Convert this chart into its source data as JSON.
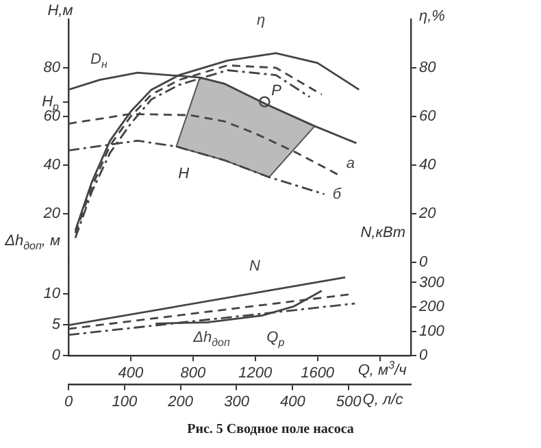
{
  "chart_data": [
    {
      "type": "line",
      "ylabel": "H,м",
      "y2label": "η,%",
      "xlim": [
        0,
        2200
      ],
      "ylim": [
        0,
        100
      ],
      "yticks": [
        20,
        40,
        {
          "value": 66,
          "label": "H$_{р}$"
        },
        60,
        80
      ],
      "y2lim": [
        0,
        100
      ],
      "y2ticks": [
        0,
        20,
        40,
        60,
        80
      ],
      "tick_labels": "y",
      "grid": false,
      "legend": false,
      "marker": "none",
      "series": [
        {
          "name": "D$_{н}$",
          "color": "#444444",
          "line_style": "solid",
          "x": [
            0,
            200,
            444,
            844,
            1000,
            1271,
            1582,
            1850
          ],
          "values": [
            71,
            75,
            78,
            76,
            73.5,
            65,
            56,
            49
          ]
        },
        {
          "name": "a",
          "color": "#444444",
          "line_style": "dashed",
          "x": [
            0,
            400,
            782,
            1000,
            1200,
            1467,
            1733
          ],
          "values": [
            57,
            61,
            60.5,
            58,
            53,
            45,
            36
          ]
        },
        {
          "name": "б",
          "color": "#444444",
          "line_style": "dashdot",
          "x": [
            0,
            444,
            693,
            1000,
            1289,
            1644
          ],
          "values": [
            46,
            50,
            47.6,
            42,
            35,
            28
          ]
        },
        {
          "name": "η",
          "color": "#444444",
          "line_style": "solid",
          "axis": "y2",
          "x": [
            44,
            150,
            267,
            400,
            533,
            711,
            1022,
            1333,
            1600,
            1867
          ],
          "values": [
            13,
            33,
            50,
            62,
            71,
            77,
            83,
            86,
            82,
            71
          ]
        },
        {
          "color": "#444444",
          "line_style": "dashed",
          "axis": "y2",
          "x": [
            44,
            150,
            267,
            400,
            533,
            711,
            1022,
            1333,
            1627
          ],
          "values": [
            12,
            31,
            48,
            60,
            69,
            75,
            81,
            80,
            69
          ]
        },
        {
          "color": "#444444",
          "line_style": "dashdot",
          "axis": "y2",
          "x": [
            44,
            150,
            267,
            400,
            533,
            711,
            1022,
            1333,
            1550
          ],
          "values": [
            10,
            29,
            45,
            57,
            67,
            73,
            79,
            77,
            68
          ]
        },
        {
          "type": "area",
          "color": "#555555",
          "x": [
            844,
            1000,
            1271,
            1582,
            1289,
            1000,
            693,
            844
          ],
          "values": [
            76,
            73.5,
            65,
            56,
            35,
            42,
            47.6,
            76
          ]
        },
        {
          "type": "scatter",
          "color": "#444444",
          "marker": "circle",
          "x": [
            1260
          ],
          "values": [
            66
          ]
        }
      ],
      "annotations": [
        {
          "text": "P",
          "x": 1260,
          "y": 66
        },
        "H"
      ]
    },
    {
      "type": "line",
      "xlabel": "Q, м$^{3}$/ч",
      "x2label": "Q, л/с",
      "ylabel": "Δh$_{доп}$, м",
      "y2label": "N,кВт",
      "xlim": [
        0,
        2200
      ],
      "xticks": [
        400,
        800,
        1200,
        1600,
        {
          "value": 2000,
          "label": null
        }
      ],
      "x2lim": [
        0,
        611
      ],
      "x2ticks": [
        0,
        100,
        200,
        300,
        400,
        500
      ],
      "ylim": [
        0,
        15
      ],
      "yticks": [
        0,
        5,
        10
      ],
      "y2lim": [
        0,
        380
      ],
      "y2ticks": [
        0,
        100,
        200,
        300
      ],
      "grid": false,
      "legend": false,
      "marker": "none",
      "series": [
        {
          "name": "N",
          "color": "#444444",
          "line_style": "solid",
          "axis": "y2",
          "x": [
            0,
            1778
          ],
          "values": [
            125,
            321
          ]
        },
        {
          "color": "#444444",
          "line_style": "dashed",
          "axis": "y2",
          "x": [
            0,
            1800
          ],
          "values": [
            110,
            251
          ]
        },
        {
          "color": "#444444",
          "line_style": "dashdot",
          "axis": "y2",
          "x": [
            0,
            1840
          ],
          "values": [
            85,
            214
          ]
        },
        {
          "name": "Δh$_{доп}$",
          "color": "#444444",
          "line_style": "solid",
          "x": [
            560,
            890,
            1244,
            1450,
            1627
          ],
          "values": [
            5.2,
            5.4,
            6.5,
            8,
            10.5
          ]
        }
      ],
      "annotations": [
        "Q$_{р}$",
        "Рис. 5 Сводное поле насоса"
      ]
    }
  ]
}
